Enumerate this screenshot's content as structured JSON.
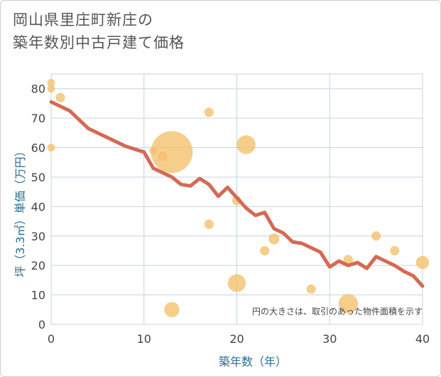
{
  "title_line1": "岡山県里庄町新庄の",
  "title_line2": "築年数別中古戸建て価格",
  "chart_data": {
    "type": "scatter",
    "xlabel": "築年数（年）",
    "ylabel": "坪（3.3㎡）単価（万円）",
    "xlim": [
      0,
      40
    ],
    "ylim": [
      0,
      85
    ],
    "xticks": [
      "0",
      "10",
      "20",
      "30",
      "40"
    ],
    "yticks": [
      "0",
      "10",
      "20",
      "30",
      "40",
      "50",
      "60",
      "70",
      "80"
    ],
    "note": "円の大きさは、取引のあった物件面積を示す",
    "grid": true,
    "colors": {
      "bubble": "#f3c06b",
      "line": "#d46a55",
      "grid": "#c5d3e0"
    },
    "points": [
      {
        "x": 0,
        "y": 82,
        "size": 2
      },
      {
        "x": 0,
        "y": 80,
        "size": 2
      },
      {
        "x": 0,
        "y": 60,
        "size": 2
      },
      {
        "x": 1,
        "y": 77,
        "size": 3
      },
      {
        "x": 11,
        "y": 59,
        "size": 2
      },
      {
        "x": 12,
        "y": 57,
        "size": 3
      },
      {
        "x": 13,
        "y": 58.5,
        "size": 60
      },
      {
        "x": 13,
        "y": 5,
        "size": 8
      },
      {
        "x": 17,
        "y": 72,
        "size": 3
      },
      {
        "x": 17,
        "y": 34,
        "size": 3
      },
      {
        "x": 20,
        "y": 42,
        "size": 3
      },
      {
        "x": 20,
        "y": 14,
        "size": 11
      },
      {
        "x": 21,
        "y": 61,
        "size": 12
      },
      {
        "x": 23,
        "y": 25,
        "size": 3
      },
      {
        "x": 24,
        "y": 29,
        "size": 4
      },
      {
        "x": 28,
        "y": 12,
        "size": 3
      },
      {
        "x": 32,
        "y": 22,
        "size": 3
      },
      {
        "x": 32,
        "y": 7,
        "size": 13
      },
      {
        "x": 35,
        "y": 30,
        "size": 3
      },
      {
        "x": 37,
        "y": 25,
        "size": 3
      },
      {
        "x": 40,
        "y": 21,
        "size": 6
      }
    ],
    "trend": {
      "x": [
        0,
        2,
        4,
        6,
        8,
        9.5,
        10,
        11,
        12,
        13,
        14,
        15,
        16,
        17,
        18,
        19,
        20,
        21,
        22,
        23,
        24,
        25,
        26,
        27,
        28,
        29,
        30,
        31,
        32,
        33,
        34,
        35,
        36,
        37,
        38,
        39,
        40
      ],
      "y": [
        75.5,
        72.5,
        66.5,
        63.5,
        60.5,
        59,
        58.5,
        53,
        51.5,
        50,
        47.5,
        47,
        49.5,
        47.5,
        43.5,
        46.5,
        43,
        39.5,
        37,
        38,
        32.5,
        31,
        28,
        27.5,
        26,
        24.5,
        19.5,
        21.5,
        20,
        21,
        19,
        23,
        21.5,
        20,
        18,
        16.5,
        13
      ]
    }
  }
}
